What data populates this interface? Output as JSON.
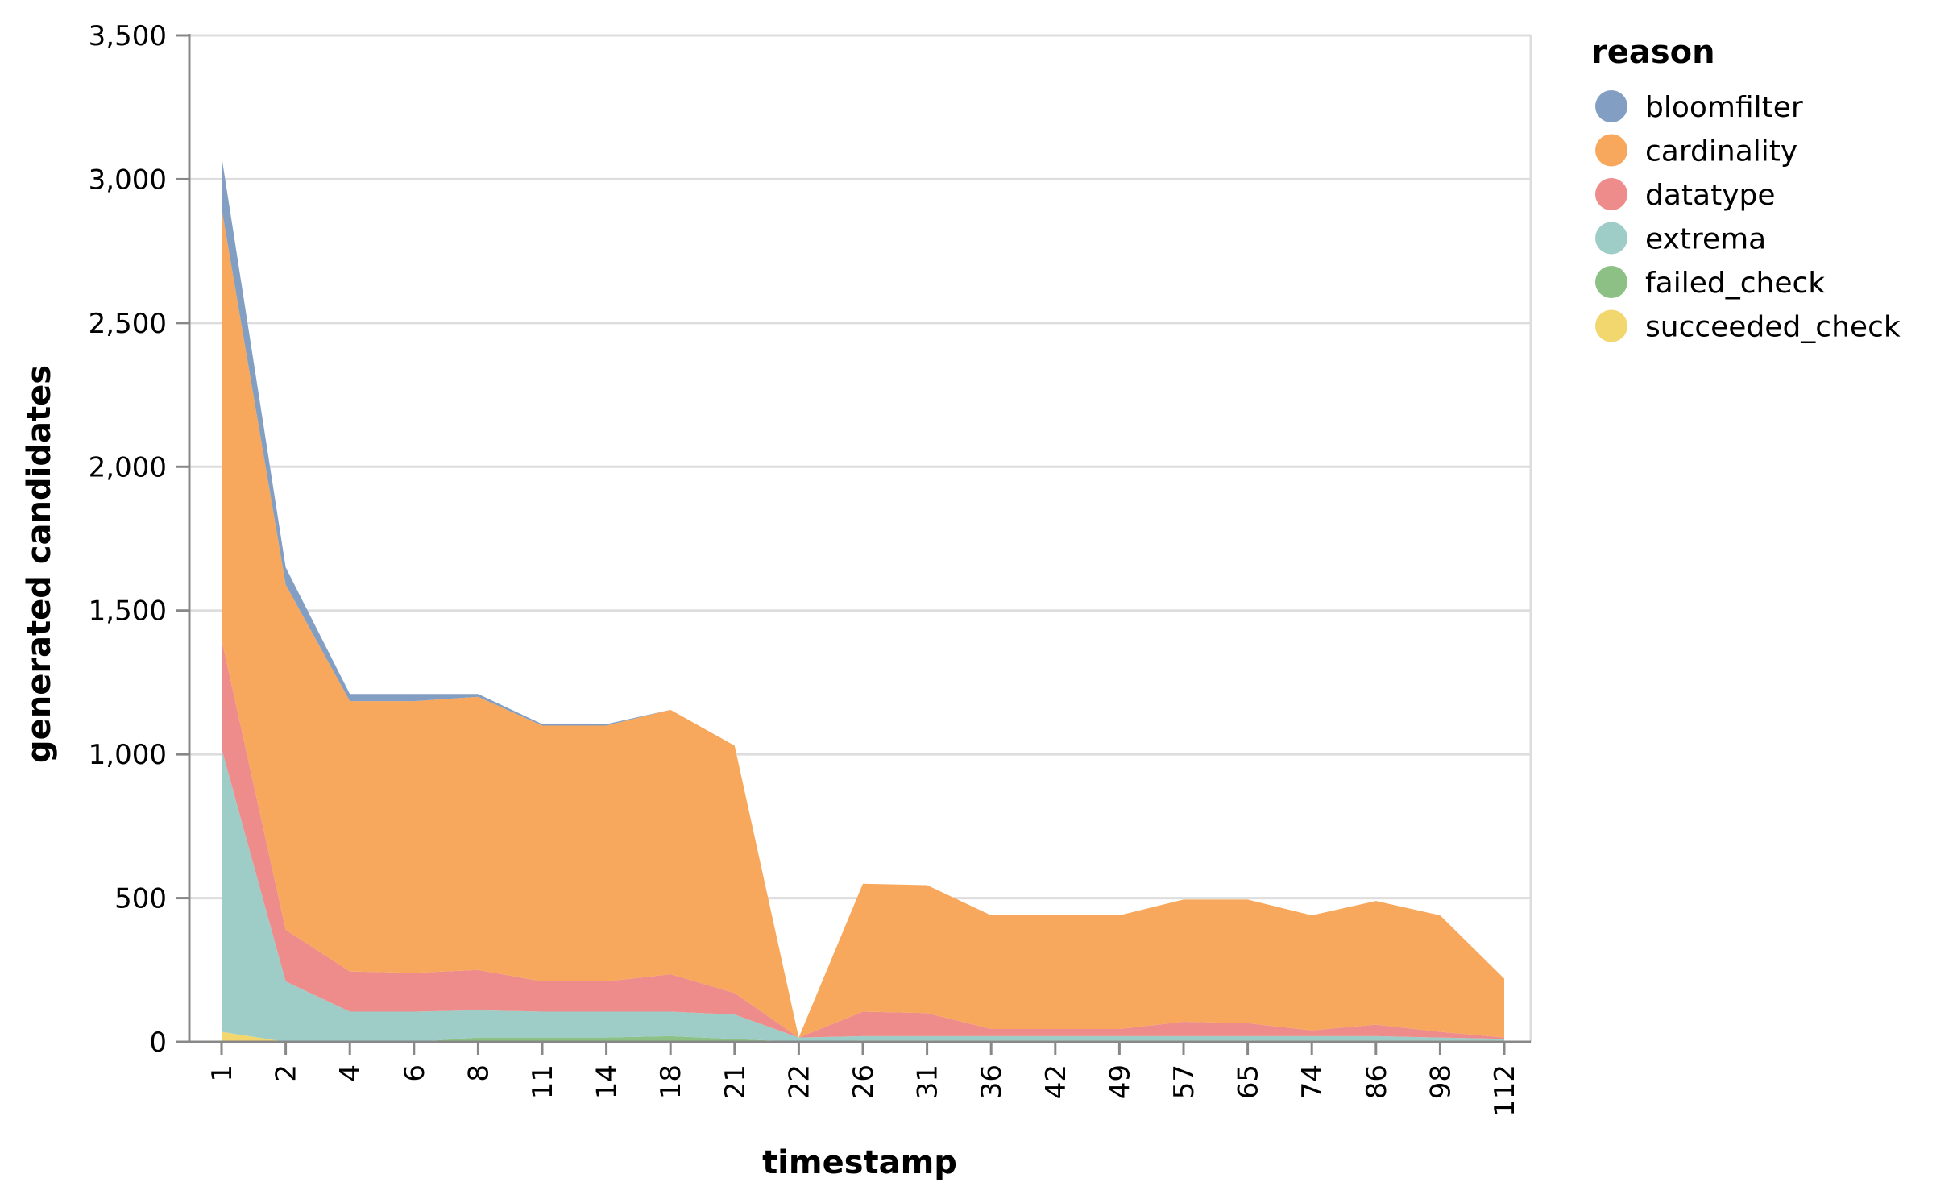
{
  "chart_data": {
    "type": "area",
    "stacked": true,
    "xlabel": "timestamp",
    "ylabel": "generated candidates",
    "categories": [
      "1",
      "2",
      "4",
      "6",
      "8",
      "11",
      "14",
      "18",
      "21",
      "22",
      "26",
      "31",
      "36",
      "42",
      "49",
      "57",
      "65",
      "74",
      "86",
      "98",
      "112"
    ],
    "ylim": [
      0,
      3500
    ],
    "yticks": [
      0,
      500,
      1000,
      1500,
      2000,
      2500,
      3000,
      3500
    ],
    "ytick_labels": [
      "0",
      "500",
      "1,000",
      "1,500",
      "2,000",
      "2,500",
      "3,000",
      "3,500"
    ],
    "grid": true,
    "legend": {
      "title": "reason",
      "position": "right"
    },
    "series": [
      {
        "name": "succeeded_check",
        "color": "#f2d66e",
        "values": [
          35,
          0,
          0,
          0,
          0,
          0,
          0,
          0,
          0,
          0,
          0,
          0,
          0,
          0,
          0,
          0,
          0,
          0,
          0,
          0,
          0
        ]
      },
      {
        "name": "failed_check",
        "color": "#8cc084",
        "values": [
          0,
          0,
          0,
          0,
          15,
          15,
          15,
          20,
          10,
          0,
          5,
          5,
          5,
          5,
          5,
          5,
          5,
          5,
          5,
          5,
          5
        ]
      },
      {
        "name": "extrema",
        "color": "#9ecdc8",
        "values": [
          985,
          210,
          105,
          105,
          95,
          90,
          90,
          85,
          85,
          15,
          15,
          15,
          15,
          15,
          15,
          15,
          15,
          15,
          15,
          10,
          5
        ]
      },
      {
        "name": "datatype",
        "color": "#ee8c8c",
        "values": [
          380,
          180,
          140,
          135,
          140,
          105,
          105,
          130,
          75,
          0,
          85,
          80,
          25,
          25,
          25,
          50,
          45,
          20,
          40,
          20,
          5
        ]
      },
      {
        "name": "cardinality",
        "color": "#f7a85c",
        "values": [
          1500,
          1200,
          940,
          945,
          950,
          890,
          890,
          920,
          860,
          0,
          445,
          445,
          395,
          395,
          395,
          425,
          430,
          400,
          430,
          405,
          205
        ]
      },
      {
        "name": "bloomfilter",
        "color": "#829fc3",
        "values": [
          180,
          60,
          25,
          25,
          10,
          5,
          5,
          0,
          0,
          0,
          0,
          0,
          0,
          0,
          0,
          0,
          0,
          0,
          0,
          0,
          0
        ]
      }
    ],
    "legend_order": [
      "bloomfilter",
      "cardinality",
      "datatype",
      "extrema",
      "failed_check",
      "succeeded_check"
    ]
  }
}
